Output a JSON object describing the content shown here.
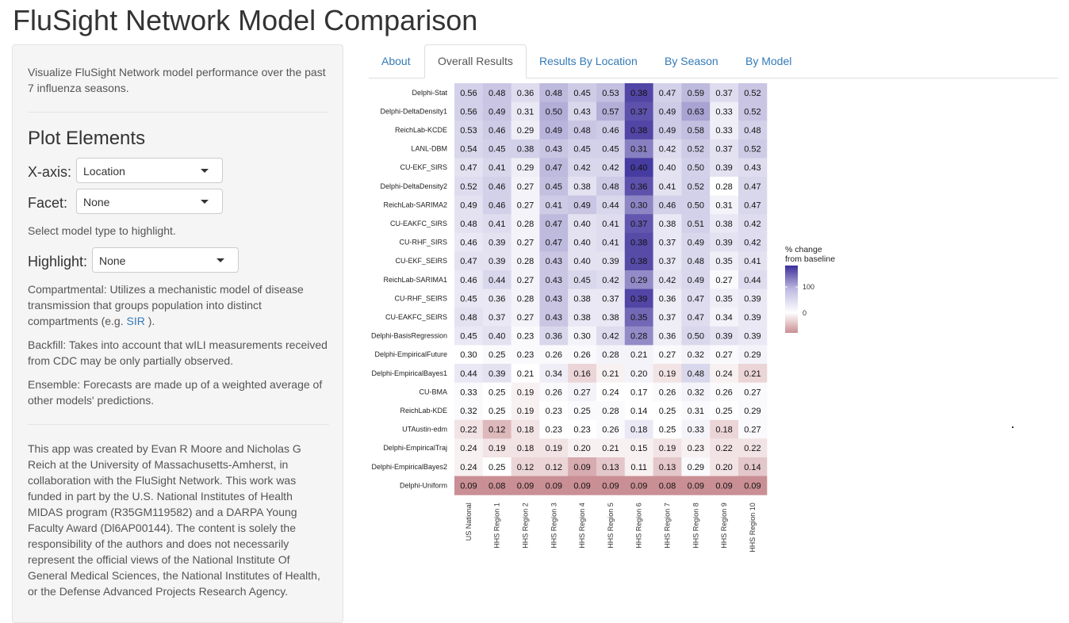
{
  "app": {
    "title": "FluSight Network Model Comparison"
  },
  "sidebar": {
    "intro": "Visualize FluSight Network model performance over the past 7 influenza seasons.",
    "plot_elements_heading": "Plot Elements",
    "xaxis": {
      "label": "X-axis:",
      "value": "Location"
    },
    "facet": {
      "label": "Facet:",
      "value": "None"
    },
    "select_model_hint": "Select model type to highlight.",
    "highlight": {
      "label": "Highlight:",
      "value": "None"
    },
    "compartmental_pre": "Compartmental: Utilizes a mechanistic model of disease transmission that groups population into distinct compartments (e.g. ",
    "compartmental_link": "SIR",
    "compartmental_post": " ).",
    "backfill": "Backfill: Takes into account that wILI measurements received from CDC may be only partially observed.",
    "ensemble": "Ensemble: Forecasts are made up of a weighted average of other models' predictions.",
    "credits": "This app was created by Evan R Moore and Nicholas G Reich at the University of Massachusetts-Amherst, in collaboration with the FluSight Network. This work was funded in part by the U.S. National Institutes of Health MIDAS program (R35GM119582) and a DARPA Young Faculty Award (Dl6AP00144). The content is solely the responsibility of the authors and does not necessarily represent the official views of the National Institute Of General Medical Sciences, the National Institutes of Health, or the Defense Advanced Projects Research Agency."
  },
  "tabs": [
    {
      "label": "About",
      "active": false
    },
    {
      "label": "Overall Results",
      "active": true
    },
    {
      "label": "Results By Location",
      "active": false
    },
    {
      "label": "By Season",
      "active": false
    },
    {
      "label": "By Model",
      "active": false
    }
  ],
  "colors": {
    "low": "#c98f94",
    "mid": "#ffffff",
    "high": "#3b2f9a",
    "link": "#337ab7"
  },
  "chart_data": {
    "type": "heatmap",
    "legend_title": "% change\nfrom baseline",
    "legend_ticks": [
      0,
      100
    ],
    "legend_placement": "right",
    "x": [
      "US National",
      "HHS Region 1",
      "HHS Region 2",
      "HHS Region 3",
      "HHS Region 4",
      "HHS Region 5",
      "HHS Region 6",
      "HHS Region 7",
      "HHS Region 8",
      "HHS Region 9",
      "HHS Region 10"
    ],
    "y": [
      "Delphi-Stat",
      "Delphi-DeltaDensity1",
      "ReichLab-KCDE",
      "LANL-DBM",
      "CU-EKF_SIRS",
      "Delphi-DeltaDensity2",
      "ReichLab-SARIMA2",
      "CU-EAKFC_SIRS",
      "CU-RHF_SIRS",
      "CU-EKF_SEIRS",
      "ReichLab-SARIMA1",
      "CU-RHF_SEIRS",
      "CU-EAKFC_SEIRS",
      "Delphi-BasisRegression",
      "Delphi-EmpiricalFuture",
      "Delphi-EmpiricalBayes1",
      "CU-BMA",
      "ReichLab-KDE",
      "UTAustin-edm",
      "Delphi-EmpiricalTraj",
      "Delphi-EmpiricalBayes2",
      "Delphi-Uniform"
    ],
    "values": [
      [
        "0.56",
        "0.48",
        "0.36",
        "0.48",
        "0.45",
        "0.53",
        "0.38",
        "0.47",
        "0.59",
        "0.37",
        "0.52"
      ],
      [
        "0.56",
        "0.49",
        "0.31",
        "0.50",
        "0.43",
        "0.57",
        "0.37",
        "0.49",
        "0.63",
        "0.33",
        "0.52"
      ],
      [
        "0.53",
        "0.46",
        "0.29",
        "0.49",
        "0.48",
        "0.46",
        "0.38",
        "0.49",
        "0.58",
        "0.33",
        "0.48"
      ],
      [
        "0.54",
        "0.45",
        "0.38",
        "0.43",
        "0.45",
        "0.45",
        "0.31",
        "0.42",
        "0.52",
        "0.37",
        "0.52"
      ],
      [
        "0.47",
        "0.41",
        "0.29",
        "0.47",
        "0.42",
        "0.42",
        "0.40",
        "0.40",
        "0.50",
        "0.39",
        "0.43"
      ],
      [
        "0.52",
        "0.46",
        "0.27",
        "0.45",
        "0.38",
        "0.48",
        "0.36",
        "0.41",
        "0.52",
        "0.28",
        "0.47"
      ],
      [
        "0.49",
        "0.46",
        "0.27",
        "0.41",
        "0.49",
        "0.44",
        "0.30",
        "0.46",
        "0.50",
        "0.31",
        "0.47"
      ],
      [
        "0.48",
        "0.41",
        "0.28",
        "0.47",
        "0.40",
        "0.41",
        "0.37",
        "0.38",
        "0.51",
        "0.38",
        "0.42"
      ],
      [
        "0.46",
        "0.39",
        "0.27",
        "0.47",
        "0.40",
        "0.41",
        "0.38",
        "0.37",
        "0.49",
        "0.39",
        "0.42"
      ],
      [
        "0.47",
        "0.39",
        "0.28",
        "0.43",
        "0.40",
        "0.39",
        "0.38",
        "0.37",
        "0.48",
        "0.35",
        "0.41"
      ],
      [
        "0.46",
        "0.44",
        "0.27",
        "0.43",
        "0.45",
        "0.42",
        "0.29",
        "0.42",
        "0.49",
        "0.27",
        "0.44"
      ],
      [
        "0.45",
        "0.36",
        "0.28",
        "0.43",
        "0.38",
        "0.37",
        "0.39",
        "0.36",
        "0.47",
        "0.35",
        "0.39"
      ],
      [
        "0.48",
        "0.37",
        "0.27",
        "0.43",
        "0.38",
        "0.38",
        "0.35",
        "0.37",
        "0.47",
        "0.34",
        "0.39"
      ],
      [
        "0.45",
        "0.40",
        "0.23",
        "0.36",
        "0.30",
        "0.42",
        "0.28",
        "0.36",
        "0.50",
        "0.39",
        "0.39"
      ],
      [
        "0.30",
        "0.25",
        "0.23",
        "0.26",
        "0.26",
        "0.28",
        "0.21",
        "0.27",
        "0.32",
        "0.27",
        "0.29"
      ],
      [
        "0.44",
        "0.39",
        "0.21",
        "0.34",
        "0.16",
        "0.21",
        "0.20",
        "0.19",
        "0.48",
        "0.24",
        "0.21"
      ],
      [
        "0.33",
        "0.25",
        "0.19",
        "0.26",
        "0.27",
        "0.24",
        "0.17",
        "0.26",
        "0.32",
        "0.26",
        "0.27"
      ],
      [
        "0.32",
        "0.25",
        "0.19",
        "0.23",
        "0.25",
        "0.28",
        "0.14",
        "0.25",
        "0.31",
        "0.25",
        "0.29"
      ],
      [
        "0.22",
        "0.12",
        "0.18",
        "0.23",
        "0.23",
        "0.26",
        "0.18",
        "0.25",
        "0.33",
        "0.18",
        "0.27"
      ],
      [
        "0.24",
        "0.19",
        "0.18",
        "0.19",
        "0.20",
        "0.21",
        "0.15",
        "0.19",
        "0.23",
        "0.22",
        "0.22"
      ],
      [
        "0.24",
        "0.25",
        "0.12",
        "0.12",
        "0.09",
        "0.13",
        "0.11",
        "0.13",
        "0.29",
        "0.20",
        "0.14"
      ],
      [
        "0.09",
        "0.08",
        "0.09",
        "0.09",
        "0.09",
        "0.09",
        "0.09",
        "0.08",
        "0.09",
        "0.09",
        "0.09"
      ]
    ],
    "color_percent_change": [
      [
        40,
        50,
        30,
        60,
        45,
        55,
        160,
        40,
        60,
        30,
        50
      ],
      [
        40,
        50,
        20,
        70,
        35,
        70,
        150,
        45,
        80,
        15,
        50
      ],
      [
        35,
        45,
        15,
        65,
        50,
        45,
        160,
        45,
        55,
        15,
        40
      ],
      [
        35,
        40,
        40,
        50,
        40,
        40,
        110,
        30,
        45,
        25,
        45
      ],
      [
        25,
        35,
        15,
        60,
        35,
        35,
        170,
        25,
        40,
        25,
        30
      ],
      [
        30,
        40,
        10,
        55,
        25,
        45,
        150,
        25,
        40,
        0,
        35
      ],
      [
        25,
        40,
        10,
        45,
        50,
        35,
        105,
        40,
        40,
        10,
        35
      ],
      [
        25,
        30,
        10,
        60,
        25,
        30,
        145,
        20,
        40,
        20,
        30
      ],
      [
        20,
        25,
        10,
        60,
        25,
        30,
        155,
        20,
        35,
        25,
        30
      ],
      [
        25,
        25,
        10,
        50,
        25,
        25,
        155,
        20,
        35,
        15,
        25
      ],
      [
        20,
        35,
        10,
        50,
        35,
        30,
        100,
        25,
        35,
        5,
        30
      ],
      [
        20,
        20,
        10,
        50,
        20,
        20,
        160,
        15,
        30,
        15,
        20
      ],
      [
        25,
        20,
        10,
        50,
        20,
        20,
        130,
        15,
        30,
        10,
        20
      ],
      [
        20,
        25,
        5,
        35,
        10,
        30,
        100,
        15,
        35,
        25,
        20
      ],
      [
        0,
        5,
        5,
        5,
        5,
        10,
        10,
        5,
        10,
        5,
        10
      ],
      [
        20,
        25,
        0,
        15,
        -15,
        -5,
        10,
        -10,
        35,
        -5,
        -15
      ],
      [
        5,
        0,
        -5,
        5,
        10,
        0,
        0,
        5,
        10,
        5,
        5
      ],
      [
        5,
        0,
        -5,
        0,
        5,
        5,
        0,
        0,
        5,
        0,
        5
      ],
      [
        -10,
        -25,
        -10,
        0,
        0,
        5,
        20,
        0,
        10,
        -15,
        5
      ],
      [
        -5,
        -10,
        -10,
        -10,
        -5,
        -5,
        -5,
        -10,
        -5,
        -10,
        -10
      ],
      [
        -5,
        0,
        -15,
        -15,
        -30,
        -20,
        -5,
        -20,
        5,
        -10,
        -20
      ],
      [
        -40,
        -40,
        -40,
        -40,
        -40,
        -40,
        -40,
        -40,
        -40,
        -40,
        -40
      ]
    ]
  }
}
